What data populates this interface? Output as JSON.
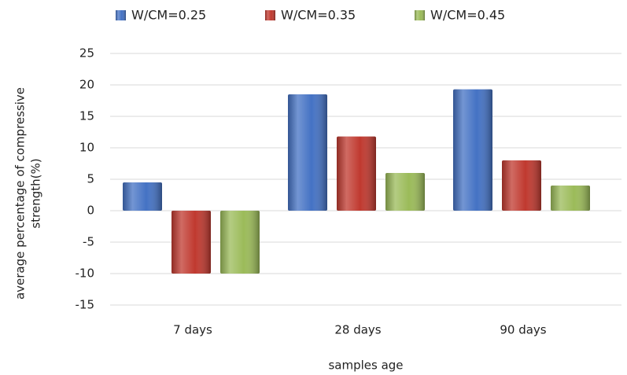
{
  "chart_data": {
    "type": "bar",
    "categories": [
      "7 days",
      "28 days",
      "90 days"
    ],
    "series": [
      {
        "name": "W/CM=0.25",
        "color": "#4472c4",
        "values": [
          4.5,
          18.5,
          19.3
        ]
      },
      {
        "name": "W/CM=0.35",
        "color": "#c0392f",
        "values": [
          -10,
          11.8,
          8
        ]
      },
      {
        "name": "W/CM=0.45",
        "color": "#9bbb59",
        "values": [
          -10,
          6,
          4
        ]
      }
    ],
    "x_label": "samples age",
    "y_label": [
      "average percentage  of compressive",
      "strength(%)"
    ],
    "ylim": [
      -15,
      25
    ],
    "yticks": [
      -15,
      -10,
      -5,
      0,
      5,
      10,
      15,
      20,
      25
    ],
    "grid": true,
    "legend": "top"
  }
}
